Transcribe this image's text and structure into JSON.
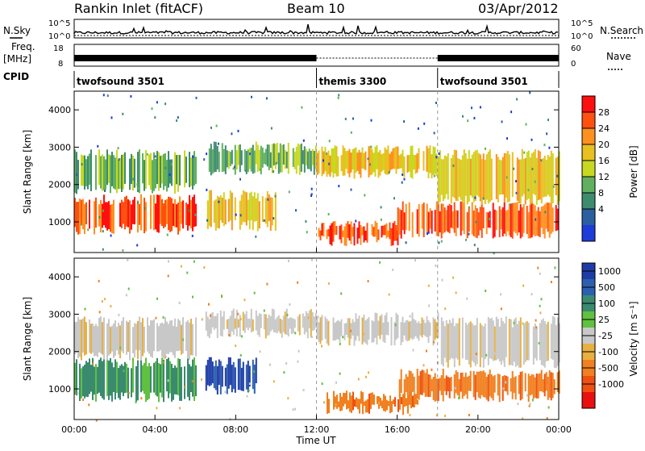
{
  "header": {
    "station": "Rankin Inlet (fitACF)",
    "beam": "Beam 10",
    "date": "03/Apr/2012"
  },
  "strip_labels": {
    "nsky": "N.Sky",
    "nsky_top": "10^5",
    "nsky_bottom": "10^0",
    "nsearch": "N.Search",
    "freq_unit_line1": "Freq.",
    "freq_unit_line2": "[MHz]",
    "freq_top": "18",
    "freq_bottom": "8",
    "nave": "Nave",
    "nave_top": "60",
    "nave_bottom": "0",
    "cpid": "CPID"
  },
  "cpid_segments": [
    {
      "label": "twofsound 3501",
      "start_hour": 0,
      "end_hour": 12
    },
    {
      "label": "themis 3300",
      "start_hour": 12,
      "end_hour": 18
    },
    {
      "label": "twofsound 3501",
      "start_hour": 18,
      "end_hour": 24
    }
  ],
  "panels": {
    "power": {
      "ylabel": "Slant Range [km]",
      "colorbar_label": "Power [dB]",
      "colorbar_ticks": [
        "28",
        "24",
        "20",
        "16",
        "12",
        "8",
        "4"
      ],
      "colorbar_colors": [
        "#ff1010",
        "#ff5010",
        "#ff9020",
        "#e8c020",
        "#c8d820",
        "#60b060",
        "#3e8c70",
        "#2a5fa0",
        "#1e3cd8"
      ],
      "y_ticks": [
        "4000",
        "3000",
        "2000",
        "1000"
      ]
    },
    "velocity": {
      "ylabel": "Slant Range [km]",
      "colorbar_label": "Velocity [m s⁻¹]",
      "colorbar_ticks": [
        "1000",
        "500",
        "100",
        "25",
        "-25",
        "-100",
        "-500",
        "-1000"
      ],
      "colorbar_colors": [
        "#1e3ca8",
        "#2c5fb0",
        "#3a8a70",
        "#60c040",
        "#c8c8c8",
        "#e8b040",
        "#f08020",
        "#f05010",
        "#e81010"
      ],
      "y_ticks": [
        "4000",
        "3000",
        "2000",
        "1000"
      ]
    }
  },
  "x_axis": {
    "label": "Time UT",
    "ticks": [
      "00:00",
      "04:00",
      "08:00",
      "12:00",
      "16:00",
      "20:00",
      "00:00"
    ]
  },
  "chart_data": [
    {
      "type": "heatmap",
      "title": "Rankin Inlet (fitACF) Beam 10 03/Apr/2012",
      "xlabel": "Time UT",
      "ylabel": "Slant Range [km]",
      "colorbar_label": "Power [dB]",
      "x_range_hours": [
        0,
        24
      ],
      "ylim": [
        180,
        4500
      ],
      "colorscale_ticks": [
        4,
        8,
        12,
        16,
        20,
        24,
        28
      ],
      "colorscale_range": [
        0,
        30
      ],
      "echo_bands": [
        {
          "start_hour": 0.0,
          "end_hour": 6.0,
          "range_low_km": 800,
          "range_high_km": 1600,
          "power_db": 26
        },
        {
          "start_hour": 0.0,
          "end_hour": 6.0,
          "range_low_km": 1900,
          "range_high_km": 2800,
          "power_db": 16
        },
        {
          "start_hour": 6.5,
          "end_hour": 10.0,
          "range_low_km": 900,
          "range_high_km": 1700,
          "power_db": 18
        },
        {
          "start_hour": 6.5,
          "end_hour": 12.0,
          "range_low_km": 2400,
          "range_high_km": 3000,
          "power_db": 17
        },
        {
          "start_hour": 12.0,
          "end_hour": 16.0,
          "range_low_km": 500,
          "range_high_km": 900,
          "power_db": 24
        },
        {
          "start_hour": 12.0,
          "end_hour": 18.0,
          "range_low_km": 2300,
          "range_high_km": 2900,
          "power_db": 18
        },
        {
          "start_hour": 16.0,
          "end_hour": 24.0,
          "range_low_km": 700,
          "range_high_km": 1400,
          "power_db": 24
        },
        {
          "start_hour": 18.0,
          "end_hour": 24.0,
          "range_low_km": 1600,
          "range_high_km": 2800,
          "power_db": 18
        }
      ]
    },
    {
      "type": "heatmap",
      "xlabel": "Time UT",
      "ylabel": "Slant Range [km]",
      "colorbar_label": "Velocity [m s⁻¹]",
      "x_range_hours": [
        0,
        24
      ],
      "ylim": [
        180,
        4500
      ],
      "colorscale_ticks": [
        -1000,
        -500,
        -100,
        -25,
        25,
        100,
        500,
        1000
      ],
      "echo_bands": [
        {
          "start_hour": 0.0,
          "end_hour": 6.0,
          "range_low_km": 800,
          "range_high_km": 1700,
          "velocity": 300
        },
        {
          "start_hour": 0.0,
          "end_hour": 6.0,
          "range_low_km": 1900,
          "range_high_km": 2800,
          "velocity": 0
        },
        {
          "start_hour": 6.5,
          "end_hour": 9.0,
          "range_low_km": 1000,
          "range_high_km": 1700,
          "velocity": 700
        },
        {
          "start_hour": 6.5,
          "end_hour": 12.0,
          "range_low_km": 2500,
          "range_high_km": 3000,
          "velocity": 0
        },
        {
          "start_hour": 12.5,
          "end_hour": 17.0,
          "range_low_km": 450,
          "range_high_km": 800,
          "velocity": -300
        },
        {
          "start_hour": 12.0,
          "end_hour": 18.0,
          "range_low_km": 2300,
          "range_high_km": 2900,
          "velocity": 0
        },
        {
          "start_hour": 16.0,
          "end_hour": 24.0,
          "range_low_km": 800,
          "range_high_km": 1400,
          "velocity": -300
        },
        {
          "start_hour": 18.0,
          "end_hour": 24.0,
          "range_low_km": 1700,
          "range_high_km": 2800,
          "velocity": 0
        }
      ]
    }
  ]
}
